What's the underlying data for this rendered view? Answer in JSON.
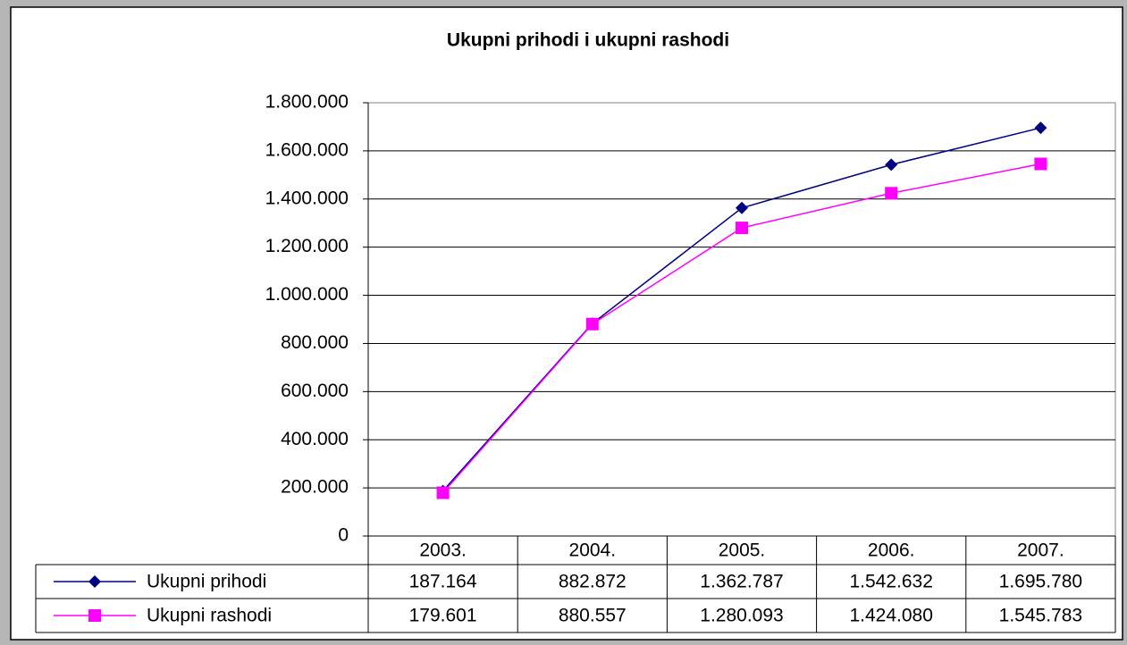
{
  "chart_data": {
    "type": "line",
    "title": "Ukupni prihodi i ukupni rashodi",
    "categories": [
      "2003.",
      "2004.",
      "2005.",
      "2006.",
      "2007."
    ],
    "series": [
      {
        "name": "Ukupni prihodi",
        "color": "#000080",
        "marker": "diamond",
        "values": [
          187164,
          882872,
          1362787,
          1542632,
          1695780
        ],
        "value_labels": [
          "187.164",
          "882.872",
          "1.362.787",
          "1.542.632",
          "1.695.780"
        ]
      },
      {
        "name": "Ukupni rashodi",
        "color": "#ff00ff",
        "marker": "square",
        "values": [
          179601,
          880557,
          1280093,
          1424080,
          1545783
        ],
        "value_labels": [
          "179.601",
          "880.557",
          "1.280.093",
          "1.424.080",
          "1.545.783"
        ]
      }
    ],
    "ylim": [
      0,
      1800000
    ],
    "yticks": [
      0,
      {
        "value": 200000,
        "label": "200.000"
      },
      {
        "value": 400000,
        "label": "400.000"
      },
      {
        "value": 600000,
        "label": "600.000"
      },
      {
        "value": 800000,
        "label": "800.000"
      },
      {
        "value": 1000000,
        "label": "1.000.000"
      },
      {
        "value": 1200000,
        "label": "1.200.000"
      },
      {
        "value": 1400000,
        "label": "1.400.000"
      },
      {
        "value": 1600000,
        "label": "1.600.000"
      },
      {
        "value": 1800000,
        "label": "1.800.000"
      }
    ],
    "grid": true,
    "data_table": true
  }
}
